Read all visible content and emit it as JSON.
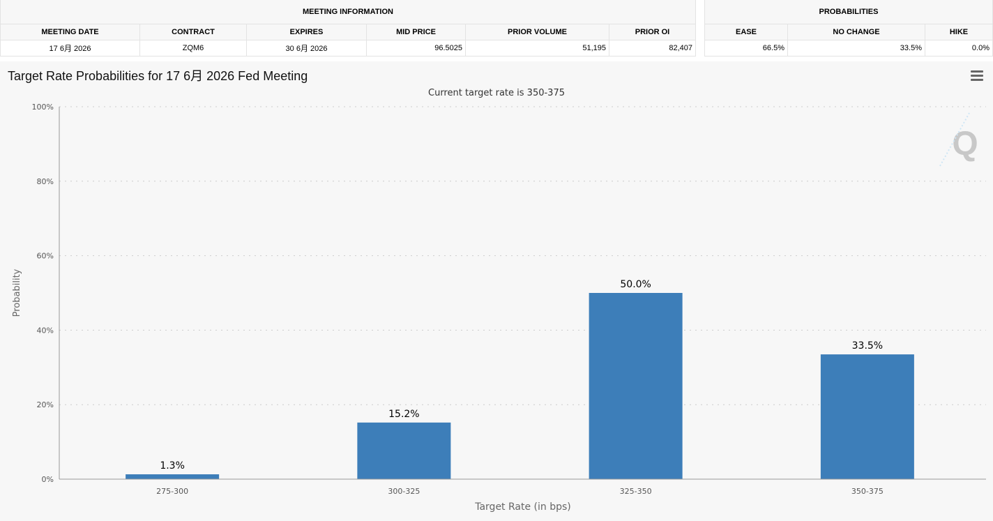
{
  "meeting_info": {
    "title": "MEETING INFORMATION",
    "headers": [
      "MEETING DATE",
      "CONTRACT",
      "EXPIRES",
      "MID PRICE",
      "PRIOR VOLUME",
      "PRIOR OI"
    ],
    "values": [
      "17 6月 2026",
      "ZQM6",
      "30 6月 2026",
      "96.5025",
      "51,195",
      "82,407"
    ]
  },
  "probabilities": {
    "title": "PROBABILITIES",
    "headers": [
      "EASE",
      "NO CHANGE",
      "HIKE"
    ],
    "values": [
      "66.5%",
      "33.5%",
      "0.0%"
    ]
  },
  "chart_data": {
    "type": "bar",
    "title": "Target Rate Probabilities for 17 6月 2026 Fed Meeting",
    "subtitle": "Current target rate is 350-375",
    "xlabel": "Target Rate (in bps)",
    "ylabel": "Probability",
    "categories": [
      "275-300",
      "300-325",
      "325-350",
      "350-375"
    ],
    "values": [
      1.3,
      15.2,
      50.0,
      33.5
    ],
    "data_labels": [
      "1.3%",
      "15.2%",
      "50.0%",
      "33.5%"
    ],
    "ylim": [
      0,
      100
    ],
    "yticks": [
      "0%",
      "20%",
      "40%",
      "60%",
      "80%",
      "100%"
    ],
    "grid": true,
    "bar_color": "#3d7eb9"
  },
  "menu_icon": "hamburger-menu-icon",
  "watermark_icon": "q-logo-icon"
}
